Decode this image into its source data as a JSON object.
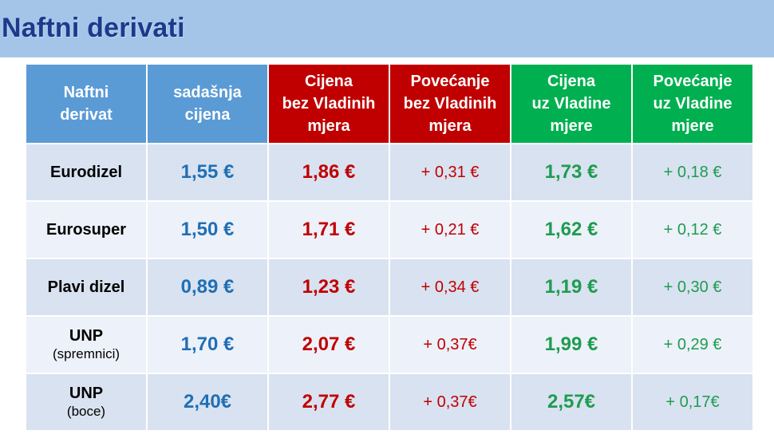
{
  "title": "Naftni derivati",
  "headers": [
    [
      "Naftni",
      "derivat"
    ],
    [
      "sadašnja",
      "cijena"
    ],
    [
      "Cijena",
      "bez Vladinih",
      "mjera"
    ],
    [
      "Povećanje",
      "bez Vladinih",
      "mjera"
    ],
    [
      "Cijena",
      "uz Vladine",
      "mjere"
    ],
    [
      "Povećanje",
      "uz Vladine",
      "mjere"
    ]
  ],
  "rows": [
    {
      "name": "Eurodizel",
      "sub": "",
      "current": "1,55 €",
      "price_without": "1,86 €",
      "increase_without": "+ 0,31 €",
      "price_with": "1,73 €",
      "increase_with": "+ 0,18 €"
    },
    {
      "name": "Eurosuper",
      "sub": "",
      "current": "1,50 €",
      "price_without": "1,71 €",
      "increase_without": "+ 0,21 €",
      "price_with": "1,62 €",
      "increase_with": "+ 0,12 €"
    },
    {
      "name": "Plavi dizel",
      "sub": "",
      "current": "0,89 €",
      "price_without": "1,23 €",
      "increase_without": "+ 0,34 €",
      "price_with": "1,19 €",
      "increase_with": "+ 0,30 €"
    },
    {
      "name": "UNP",
      "sub": "(spremnici)",
      "current": "1,70 €",
      "price_without": "2,07 €",
      "increase_without": "+ 0,37€",
      "price_with": "1,99 €",
      "increase_with": "+ 0,29 €"
    },
    {
      "name": "UNP",
      "sub": "(boce)",
      "current": "2,40€",
      "price_without": "2,77 €",
      "increase_without": "+ 0,37€",
      "price_with": "2,57€",
      "increase_with": "+ 0,17€"
    }
  ],
  "colors": {
    "title_bar": "#a4c5e8",
    "title_text": "#1c3a8c",
    "header_blue": "#5b9bd5",
    "header_red": "#c00000",
    "header_green": "#00b050",
    "value_blue": "#1f6fb5",
    "value_red": "#c00000",
    "value_green": "#1e9c50"
  }
}
